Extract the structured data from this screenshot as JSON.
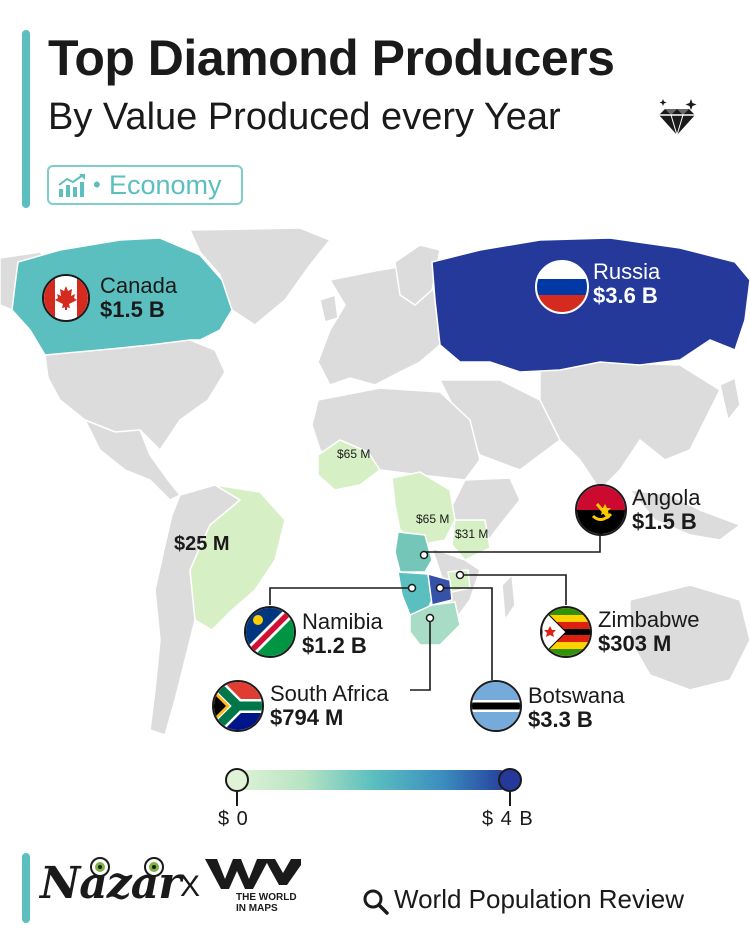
{
  "header": {
    "title": "Top Diamond Producers",
    "subtitle": "By Value Produced every Year",
    "tag": "Economy"
  },
  "countries": [
    {
      "key": "canada",
      "name": "Canada",
      "value": "$1.5 B",
      "amount_usd_b": 1.5
    },
    {
      "key": "russia",
      "name": "Russia",
      "value": "$3.6 B",
      "amount_usd_b": 3.6
    },
    {
      "key": "angola",
      "name": "Angola",
      "value": "$1.5 B",
      "amount_usd_b": 1.5
    },
    {
      "key": "zimbabwe",
      "name": "Zimbabwe",
      "value": "$303 M",
      "amount_usd_b": 0.303
    },
    {
      "key": "namibia",
      "name": "Namibia",
      "value": "$1.2 B",
      "amount_usd_b": 1.2
    },
    {
      "key": "south_africa",
      "name": "South Africa",
      "value": "$794 M",
      "amount_usd_b": 0.794
    },
    {
      "key": "botswana",
      "name": "Botswana",
      "value": "$3.3 B",
      "amount_usd_b": 3.3
    }
  ],
  "unlabeled_values": {
    "west_africa": "$65 M",
    "drc": "$65 M",
    "tanzania": "$31 M",
    "brazil": "$25 M"
  },
  "legend": {
    "min_label": "$ 0",
    "max_label": "$ 4 B",
    "color_min": "#e0f3d6",
    "color_max": "#24399a"
  },
  "colors": {
    "accent": "#5bbfbf",
    "land": "#dcdcdc",
    "russia": "#24399a",
    "canada": "#5bbfbf",
    "low_value": "#d6efc4"
  },
  "footer": {
    "brand1": "Nazar",
    "separator": "X",
    "brand2_line1": "THE WORLD",
    "brand2_line2": "IN MAPS",
    "source": "World Population Review"
  },
  "icons": [
    "diamond-icon",
    "chart-icon",
    "search-icon"
  ]
}
